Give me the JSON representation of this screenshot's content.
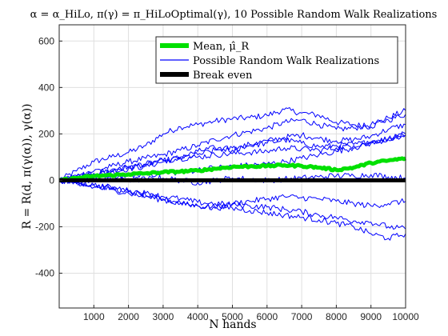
{
  "chart_data": {
    "type": "line",
    "title": "α = α_HiLo, π(γ) = π_HiLoOptimal(γ), 10 Possible Random Walk Realizations",
    "xlabel": "N hands",
    "ylabel": "R = R(d, π(γ(α)), γ(α))",
    "xlim": [
      0,
      10000
    ],
    "ylim": [
      -550,
      670
    ],
    "xticks": [
      1000,
      2000,
      3000,
      4000,
      5000,
      6000,
      7000,
      8000,
      9000,
      10000
    ],
    "yticks": [
      -400,
      -200,
      0,
      200,
      400,
      600
    ],
    "grid": true,
    "legend_position": "top-right",
    "legend": [
      {
        "label": "Mean, μ̂_R",
        "color": "#00e000"
      },
      {
        "label": "Possible Random Walk Realizations",
        "color": "#0000ff"
      },
      {
        "label": "Break even",
        "color": "#000000"
      }
    ],
    "colors": {
      "mean": "#00e000",
      "walks": "#0000ff",
      "break_even": "#000000"
    },
    "break_even": 0,
    "x": [
      0,
      500,
      1000,
      1500,
      2000,
      2500,
      3000,
      3500,
      4000,
      4500,
      5000,
      5500,
      6000,
      6500,
      7000,
      7500,
      8000,
      8500,
      9000,
      9500,
      10000
    ],
    "mean": [
      0,
      10,
      18,
      22,
      26,
      30,
      35,
      38,
      42,
      50,
      58,
      60,
      62,
      65,
      62,
      55,
      45,
      55,
      75,
      85,
      95
    ],
    "series": [
      {
        "values": [
          0,
          40,
          80,
          100,
          120,
          150,
          200,
          230,
          240,
          255,
          265,
          270,
          280,
          305,
          290,
          280,
          250,
          240,
          230,
          270,
          300
        ]
      },
      {
        "values": [
          0,
          20,
          40,
          60,
          80,
          95,
          110,
          130,
          150,
          175,
          195,
          210,
          225,
          250,
          260,
          240,
          220,
          225,
          240,
          260,
          285
        ]
      },
      {
        "values": [
          0,
          10,
          25,
          35,
          50,
          60,
          80,
          100,
          125,
          140,
          130,
          155,
          170,
          185,
          195,
          180,
          170,
          175,
          190,
          220,
          240
        ]
      },
      {
        "values": [
          0,
          15,
          30,
          45,
          55,
          70,
          85,
          95,
          110,
          130,
          140,
          150,
          160,
          175,
          160,
          145,
          150,
          155,
          165,
          180,
          195
        ]
      },
      {
        "values": [
          0,
          10,
          25,
          40,
          60,
          70,
          85,
          95,
          100,
          110,
          115,
          120,
          125,
          140,
          135,
          130,
          140,
          150,
          165,
          180,
          200
        ]
      },
      {
        "values": [
          0,
          -5,
          0,
          15,
          20,
          25,
          30,
          35,
          45,
          55,
          60,
          65,
          70,
          80,
          95,
          110,
          125,
          140,
          160,
          175,
          195
        ]
      },
      {
        "values": [
          0,
          5,
          10,
          5,
          0,
          5,
          10,
          0,
          -10,
          0,
          10,
          5,
          0,
          5,
          10,
          15,
          20,
          20,
          25,
          15,
          10
        ]
      },
      {
        "values": [
          0,
          -10,
          -20,
          -35,
          -50,
          -65,
          -80,
          -95,
          -110,
          -120,
          -100,
          -90,
          -80,
          -70,
          -75,
          -80,
          -90,
          -100,
          -110,
          -100,
          -90
        ]
      },
      {
        "values": [
          0,
          -15,
          -30,
          -40,
          -55,
          -70,
          -85,
          -100,
          -110,
          -115,
          -120,
          -130,
          -140,
          -150,
          -160,
          -170,
          -185,
          -200,
          -230,
          -250,
          -230
        ]
      },
      {
        "values": [
          0,
          -10,
          -20,
          -30,
          -45,
          -55,
          -70,
          -80,
          -95,
          -100,
          -105,
          -110,
          -115,
          -125,
          -135,
          -150,
          -160,
          -175,
          -180,
          -200,
          -210
        ]
      }
    ]
  }
}
